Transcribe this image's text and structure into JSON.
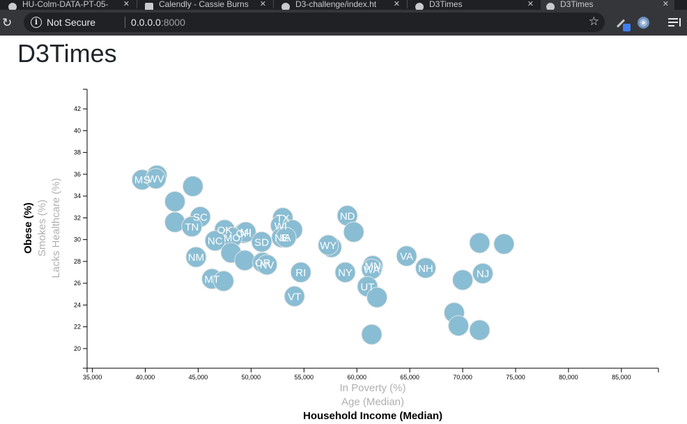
{
  "browser": {
    "tabs": [
      {
        "label": "HU-Colm-DATA-PT-05-"
      },
      {
        "label": "Calendly - Cassie Burns"
      },
      {
        "label": "D3-challenge/index.ht"
      },
      {
        "label": "D3Times"
      },
      {
        "label": "D3Times"
      }
    ],
    "security_text": "Not Secure",
    "url_host": "0.0.0.0",
    "url_port": ":8000"
  },
  "page": {
    "title": "D3Times"
  },
  "chart_data": {
    "type": "scatter",
    "title": "",
    "x_axis": {
      "labels": [
        {
          "text": "In Poverty (%)",
          "active": false
        },
        {
          "text": "Age (Median)",
          "active": false
        },
        {
          "text": "Household Income (Median)",
          "active": true
        }
      ],
      "range": [
        34500,
        88500
      ],
      "ticks": [
        35000,
        40000,
        45000,
        50000,
        55000,
        60000,
        65000,
        70000,
        75000,
        80000,
        85000
      ],
      "tick_labels": [
        "35,000",
        "40,000",
        "45,000",
        "50,000",
        "55,000",
        "60,000",
        "65,000",
        "70,000",
        "75,000",
        "80,000",
        "85,000"
      ]
    },
    "y_axis": {
      "labels": [
        {
          "text": "Obese (%)",
          "active": true
        },
        {
          "text": "Smokes (%)",
          "active": false
        },
        {
          "text": "Lacks Healthcare (%)",
          "active": false
        }
      ],
      "range": [
        18.2,
        43.8
      ],
      "ticks": [
        20,
        22,
        24,
        26,
        28,
        30,
        32,
        34,
        36,
        38,
        40,
        42
      ],
      "tick_labels": [
        "20",
        "22",
        "24",
        "26",
        "28",
        "30",
        "32",
        "34",
        "36",
        "38",
        "40",
        "42"
      ]
    },
    "points": [
      {
        "x": 39700,
        "y": 35.5,
        "label": "MS"
      },
      {
        "x": 41100,
        "y": 35.9,
        "label": ""
      },
      {
        "x": 41000,
        "y": 35.6,
        "label": "WV"
      },
      {
        "x": 44500,
        "y": 34.9,
        "label": ""
      },
      {
        "x": 42800,
        "y": 33.5,
        "label": ""
      },
      {
        "x": 45200,
        "y": 32.1,
        "label": "SC"
      },
      {
        "x": 42800,
        "y": 31.6,
        "label": ""
      },
      {
        "x": 44400,
        "y": 31.2,
        "label": "TN"
      },
      {
        "x": 47500,
        "y": 30.9,
        "label": "OK"
      },
      {
        "x": 49300,
        "y": 30.6,
        "label": "OH"
      },
      {
        "x": 49500,
        "y": 30.7,
        "label": "MI"
      },
      {
        "x": 48200,
        "y": 30.2,
        "label": "MO"
      },
      {
        "x": 46600,
        "y": 29.9,
        "label": "NC"
      },
      {
        "x": 51000,
        "y": 29.8,
        "label": "SD"
      },
      {
        "x": 53000,
        "y": 32.0,
        "label": "TX"
      },
      {
        "x": 52800,
        "y": 31.3,
        "label": "WI"
      },
      {
        "x": 53900,
        "y": 30.9,
        "label": ""
      },
      {
        "x": 52900,
        "y": 30.2,
        "label": "NE"
      },
      {
        "x": 53300,
        "y": 30.2,
        "label": "IA"
      },
      {
        "x": 48100,
        "y": 28.8,
        "label": ""
      },
      {
        "x": 49400,
        "y": 28.1,
        "label": ""
      },
      {
        "x": 51100,
        "y": 27.9,
        "label": "OR"
      },
      {
        "x": 51500,
        "y": 27.7,
        "label": "NV"
      },
      {
        "x": 44800,
        "y": 28.4,
        "label": "NM"
      },
      {
        "x": 46300,
        "y": 26.4,
        "label": "MT"
      },
      {
        "x": 47400,
        "y": 26.2,
        "label": ""
      },
      {
        "x": 54700,
        "y": 27.0,
        "label": "RI"
      },
      {
        "x": 54100,
        "y": 24.8,
        "label": "VT"
      },
      {
        "x": 57600,
        "y": 29.3,
        "label": ""
      },
      {
        "x": 57300,
        "y": 29.5,
        "label": "WY"
      },
      {
        "x": 59100,
        "y": 32.2,
        "label": "ND"
      },
      {
        "x": 59700,
        "y": 30.7,
        "label": ""
      },
      {
        "x": 58900,
        "y": 27.0,
        "label": "NY"
      },
      {
        "x": 61500,
        "y": 27.6,
        "label": "MN"
      },
      {
        "x": 61400,
        "y": 27.3,
        "label": "WA"
      },
      {
        "x": 61000,
        "y": 25.7,
        "label": "UT"
      },
      {
        "x": 61900,
        "y": 24.7,
        "label": ""
      },
      {
        "x": 61400,
        "y": 21.3,
        "label": ""
      },
      {
        "x": 64700,
        "y": 28.5,
        "label": "VA"
      },
      {
        "x": 66500,
        "y": 27.4,
        "label": "NH"
      },
      {
        "x": 70000,
        "y": 26.3,
        "label": ""
      },
      {
        "x": 69200,
        "y": 23.3,
        "label": ""
      },
      {
        "x": 69600,
        "y": 22.1,
        "label": ""
      },
      {
        "x": 71600,
        "y": 21.7,
        "label": ""
      },
      {
        "x": 71600,
        "y": 29.7,
        "label": ""
      },
      {
        "x": 73900,
        "y": 29.6,
        "label": ""
      },
      {
        "x": 71900,
        "y": 26.9,
        "label": "NJ"
      }
    ],
    "colors": {
      "marker": "#89bdd3",
      "marker_label": "#ffffff"
    }
  }
}
